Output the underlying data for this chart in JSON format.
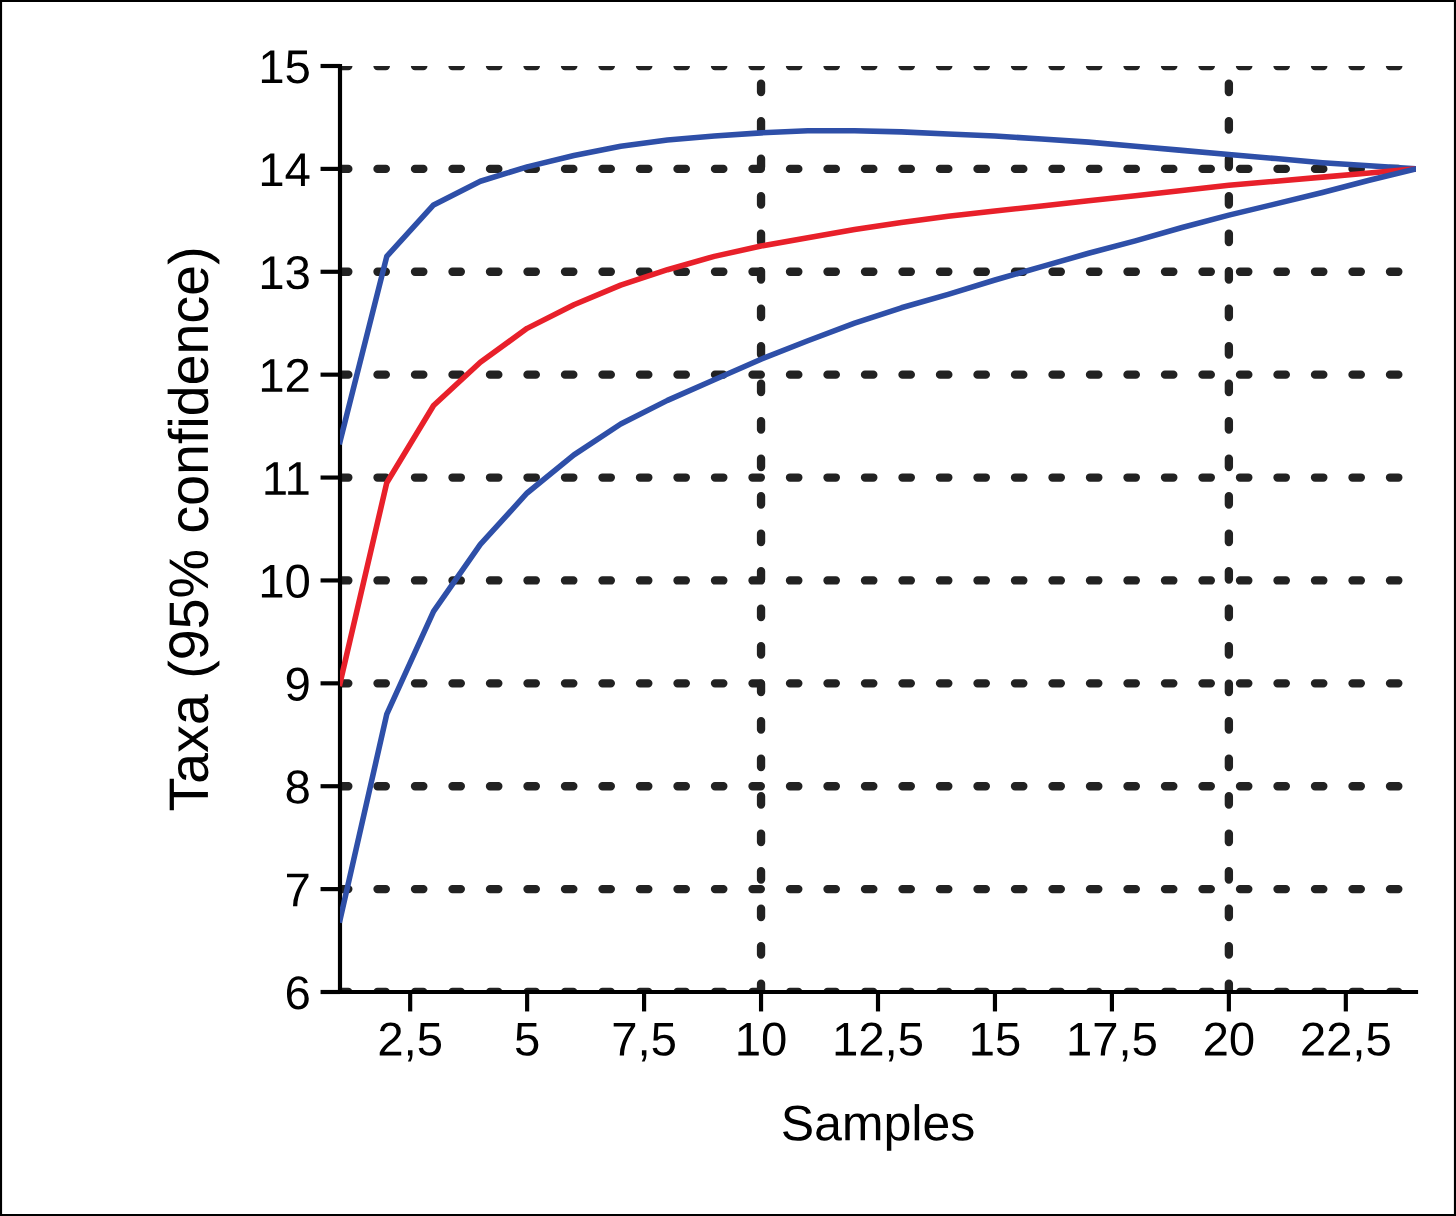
{
  "chart_data": {
    "type": "line",
    "xlabel": "Samples",
    "ylabel": "Taxa (95% confidence)",
    "x": [
      1,
      2,
      3,
      4,
      5,
      6,
      7,
      8,
      9,
      10,
      11,
      12,
      13,
      14,
      15,
      16,
      17,
      18,
      19,
      20,
      21,
      22,
      23,
      24
    ],
    "series": [
      {
        "color": "#2e4fa8",
        "values": [
          11.35,
          13.15,
          13.65,
          13.88,
          14.02,
          14.13,
          14.22,
          14.28,
          14.32,
          14.35,
          14.37,
          14.37,
          14.36,
          14.34,
          14.32,
          14.29,
          14.26,
          14.22,
          14.18,
          14.14,
          14.1,
          14.06,
          14.03,
          14.0
        ]
      },
      {
        "color": "#e8202a",
        "values": [
          9.0,
          10.95,
          11.7,
          12.12,
          12.45,
          12.68,
          12.87,
          13.02,
          13.15,
          13.25,
          13.33,
          13.41,
          13.48,
          13.54,
          13.59,
          13.64,
          13.69,
          13.74,
          13.79,
          13.84,
          13.88,
          13.92,
          13.96,
          14.0
        ]
      },
      {
        "color": "#2e4fa8",
        "values": [
          6.7,
          8.7,
          9.7,
          10.35,
          10.85,
          11.22,
          11.52,
          11.75,
          11.95,
          12.15,
          12.33,
          12.5,
          12.65,
          12.78,
          12.92,
          13.05,
          13.18,
          13.3,
          13.43,
          13.55,
          13.66,
          13.77,
          13.89,
          14.0
        ]
      }
    ],
    "xlim": [
      1,
      24
    ],
    "ylim": [
      6,
      15
    ],
    "xticks": [
      {
        "value": 2.5,
        "label": "2,5"
      },
      5,
      {
        "value": 7.5,
        "label": "7,5"
      },
      10,
      {
        "value": 12.5,
        "label": "12,5"
      },
      15,
      {
        "value": 17.5,
        "label": "17,5"
      },
      20,
      {
        "value": 22.5,
        "label": "22,5"
      }
    ],
    "yticks": [
      6,
      7,
      8,
      9,
      10,
      11,
      12,
      13,
      14,
      15
    ],
    "grid": "y",
    "line_style": "solid",
    "marker": "none",
    "ref_lines": [
      {
        "axis": "x",
        "value": 10,
        "line_style": "dotted"
      },
      {
        "axis": "x",
        "value": 20,
        "line_style": "dotted"
      }
    ]
  }
}
